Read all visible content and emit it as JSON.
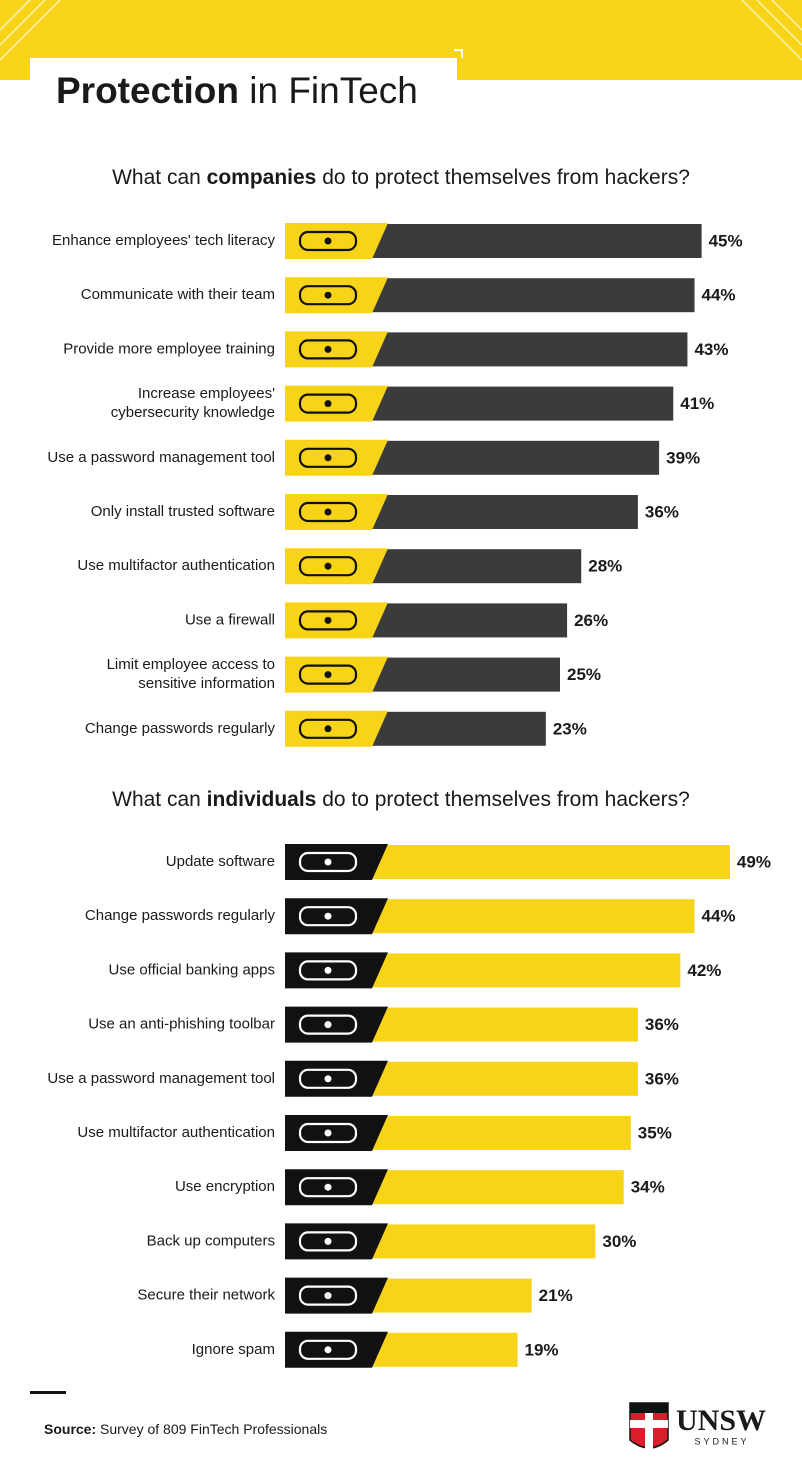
{
  "header": {
    "title": [
      "Protection",
      " in FinTech"
    ]
  },
  "chart_data": [
    {
      "type": "bar",
      "orientation": "horizontal",
      "title": [
        "What can ",
        "companies",
        " do to protect themselves from hackers?"
      ],
      "categories": [
        "Enhance employees' tech literacy",
        "Communicate with their team",
        "Provide more employee training",
        "Increase employees'\ncybersecurity knowledge",
        "Use a password management tool",
        "Only install trusted software",
        "Use multifactor authentication",
        "Use a firewall",
        "Limit employee access to\nsensitive information",
        "Change passwords regularly"
      ],
      "values": [
        45,
        44,
        43,
        41,
        39,
        36,
        28,
        26,
        25,
        23
      ],
      "value_labels": [
        "45%",
        "44%",
        "43%",
        "41%",
        "39%",
        "36%",
        "28%",
        "26%",
        "25%",
        "23%"
      ],
      "color": "#3b3b3b",
      "icon_color": "#f7d417"
    },
    {
      "type": "bar",
      "orientation": "horizontal",
      "title": [
        "What can ",
        "individuals",
        " do to protect themselves from hackers?"
      ],
      "categories": [
        "Update software",
        "Change passwords regularly",
        "Use official banking apps",
        "Use an anti-phishing toolbar",
        "Use a password management tool",
        "Use multifactor authentication",
        "Use encryption",
        "Back up computers",
        "Secure their network",
        "Ignore spam"
      ],
      "values": [
        49,
        44,
        42,
        36,
        36,
        35,
        34,
        30,
        21,
        19
      ],
      "value_labels": [
        "49%",
        "44%",
        "42%",
        "36%",
        "36%",
        "35%",
        "34%",
        "30%",
        "21%",
        "19%"
      ],
      "color": "#f7d417",
      "icon_color": "#111111"
    }
  ],
  "footer": {
    "source": [
      "Source:",
      " Survey of 809 FinTech Professionals"
    ],
    "logo": "UNSW",
    "logo_sub": "SYDNEY"
  }
}
